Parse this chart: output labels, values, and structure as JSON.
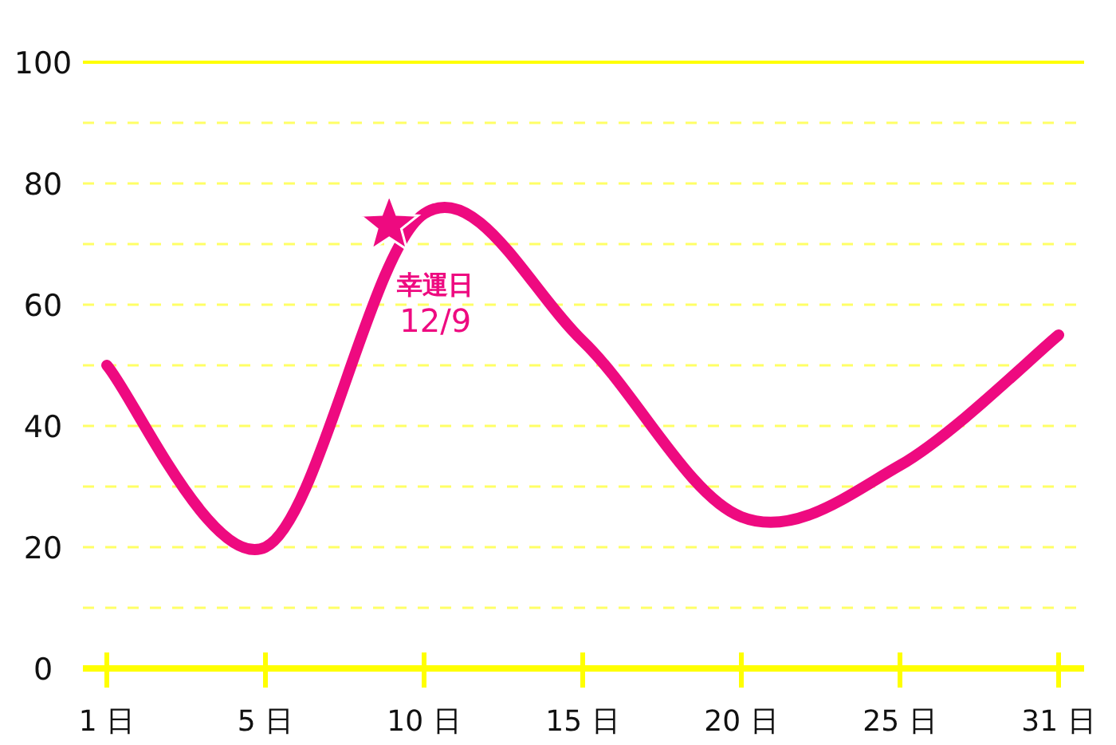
{
  "chart_data": {
    "type": "line",
    "categories": [
      "1 日",
      "5 日",
      "10 日",
      "15 日",
      "20 日",
      "25 日",
      "31 日"
    ],
    "series": [
      {
        "color": "#ee0a80",
        "values": [
          50,
          20,
          75,
          54,
          25,
          33.5,
          55
        ]
      }
    ],
    "ylim": [
      0,
      100
    ],
    "yticks": [
      0,
      {
        "value": 10,
        "label": null
      },
      20,
      {
        "value": 30,
        "label": null
      },
      40,
      {
        "value": 50,
        "label": null
      },
      60,
      {
        "value": 70,
        "label": null
      },
      80,
      {
        "value": 90,
        "label": null
      },
      100
    ],
    "grid": "y",
    "marker": "none",
    "line_style": "solid",
    "annotations": [
      "幸運日",
      "12/9"
    ]
  }
}
